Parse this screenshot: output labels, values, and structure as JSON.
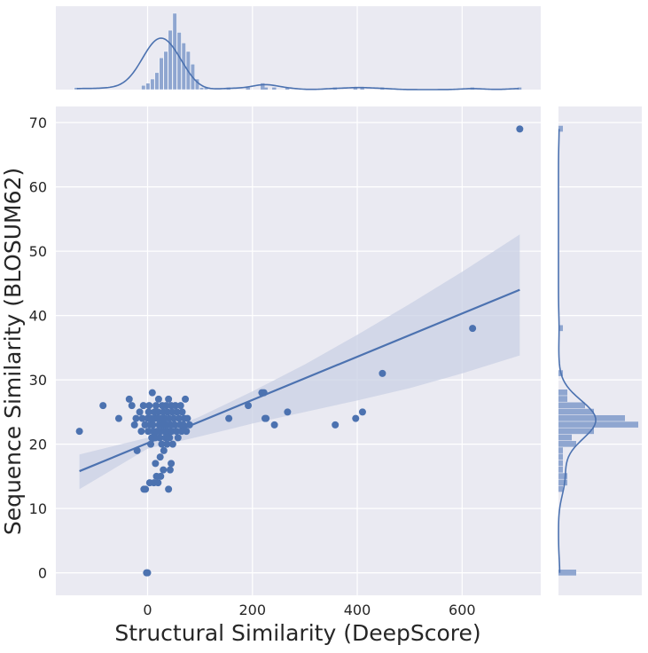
{
  "chart_data": {
    "type": "scatter",
    "xlabel": "Structural Similarity (DeepScore)",
    "ylabel": "Sequence Similarity (BLOSUM62)",
    "xlim": [
      -175,
      750
    ],
    "ylim": [
      -3.5,
      72.5
    ],
    "x_ticks": [
      0,
      200,
      400,
      600
    ],
    "y_ticks": [
      0,
      10,
      20,
      30,
      40,
      50,
      60,
      70
    ],
    "grid": true,
    "regression": {
      "x_start": -130,
      "y_start": 15.8,
      "x_end": 710,
      "y_end": 44.0
    },
    "confidence_band": {
      "x": [
        -130,
        0,
        100,
        200,
        300,
        400,
        500,
        600,
        710
      ],
      "upper": [
        18.4,
        21.0,
        24.3,
        28.2,
        32.4,
        37.0,
        41.8,
        46.8,
        52.6
      ],
      "lower": [
        13.0,
        19.3,
        21.2,
        23.2,
        25.0,
        26.8,
        28.7,
        31.0,
        33.8
      ]
    },
    "points": [
      {
        "x": -130,
        "y": 22
      },
      {
        "x": -85,
        "y": 26
      },
      {
        "x": -55,
        "y": 24
      },
      {
        "x": -35,
        "y": 27
      },
      {
        "x": -30,
        "y": 26
      },
      {
        "x": -25,
        "y": 23
      },
      {
        "x": -22,
        "y": 24
      },
      {
        "x": -20,
        "y": 19
      },
      {
        "x": -15,
        "y": 25
      },
      {
        "x": -12,
        "y": 22
      },
      {
        "x": -10,
        "y": 24
      },
      {
        "x": -8,
        "y": 26
      },
      {
        "x": -7,
        "y": 13
      },
      {
        "x": -5,
        "y": 23
      },
      {
        "x": -4,
        "y": 13
      },
      {
        "x": -2,
        "y": 0
      },
      {
        "x": 0,
        "y": 0
      },
      {
        "x": 0,
        "y": 24
      },
      {
        "x": 1,
        "y": 22
      },
      {
        "x": 2,
        "y": 25
      },
      {
        "x": 3,
        "y": 26
      },
      {
        "x": 4,
        "y": 14
      },
      {
        "x": 5,
        "y": 23
      },
      {
        "x": 6,
        "y": 20
      },
      {
        "x": 7,
        "y": 24
      },
      {
        "x": 8,
        "y": 21
      },
      {
        "x": 9,
        "y": 28
      },
      {
        "x": 10,
        "y": 23
      },
      {
        "x": 11,
        "y": 22
      },
      {
        "x": 12,
        "y": 14
      },
      {
        "x": 13,
        "y": 25
      },
      {
        "x": 14,
        "y": 24
      },
      {
        "x": 15,
        "y": 17
      },
      {
        "x": 15,
        "y": 21
      },
      {
        "x": 16,
        "y": 26
      },
      {
        "x": 17,
        "y": 15
      },
      {
        "x": 18,
        "y": 22
      },
      {
        "x": 19,
        "y": 24
      },
      {
        "x": 20,
        "y": 25
      },
      {
        "x": 20,
        "y": 14
      },
      {
        "x": 21,
        "y": 27
      },
      {
        "x": 22,
        "y": 23
      },
      {
        "x": 23,
        "y": 21
      },
      {
        "x": 24,
        "y": 18
      },
      {
        "x": 25,
        "y": 22
      },
      {
        "x": 25,
        "y": 15
      },
      {
        "x": 26,
        "y": 24
      },
      {
        "x": 27,
        "y": 20
      },
      {
        "x": 28,
        "y": 26
      },
      {
        "x": 29,
        "y": 23
      },
      {
        "x": 30,
        "y": 16
      },
      {
        "x": 30,
        "y": 25
      },
      {
        "x": 31,
        "y": 19
      },
      {
        "x": 32,
        "y": 22
      },
      {
        "x": 33,
        "y": 24
      },
      {
        "x": 34,
        "y": 21
      },
      {
        "x": 35,
        "y": 26
      },
      {
        "x": 36,
        "y": 23
      },
      {
        "x": 37,
        "y": 20
      },
      {
        "x": 38,
        "y": 25
      },
      {
        "x": 39,
        "y": 22
      },
      {
        "x": 40,
        "y": 27
      },
      {
        "x": 40,
        "y": 13
      },
      {
        "x": 41,
        "y": 24
      },
      {
        "x": 42,
        "y": 21
      },
      {
        "x": 43,
        "y": 16
      },
      {
        "x": 44,
        "y": 23
      },
      {
        "x": 45,
        "y": 26
      },
      {
        "x": 45,
        "y": 17
      },
      {
        "x": 46,
        "y": 22
      },
      {
        "x": 47,
        "y": 25
      },
      {
        "x": 48,
        "y": 20
      },
      {
        "x": 50,
        "y": 24
      },
      {
        "x": 52,
        "y": 23
      },
      {
        "x": 53,
        "y": 26
      },
      {
        "x": 55,
        "y": 22
      },
      {
        "x": 56,
        "y": 25
      },
      {
        "x": 58,
        "y": 21
      },
      {
        "x": 60,
        "y": 24
      },
      {
        "x": 62,
        "y": 23
      },
      {
        "x": 63,
        "y": 26
      },
      {
        "x": 65,
        "y": 22
      },
      {
        "x": 66,
        "y": 25
      },
      {
        "x": 68,
        "y": 23
      },
      {
        "x": 70,
        "y": 24
      },
      {
        "x": 72,
        "y": 27
      },
      {
        "x": 74,
        "y": 22
      },
      {
        "x": 76,
        "y": 24
      },
      {
        "x": 80,
        "y": 23
      },
      {
        "x": 155,
        "y": 24
      },
      {
        "x": 192,
        "y": 26
      },
      {
        "x": 218,
        "y": 28
      },
      {
        "x": 222,
        "y": 28
      },
      {
        "x": 224,
        "y": 24
      },
      {
        "x": 226,
        "y": 24
      },
      {
        "x": 242,
        "y": 23
      },
      {
        "x": 267,
        "y": 25
      },
      {
        "x": 358,
        "y": 23
      },
      {
        "x": 397,
        "y": 24
      },
      {
        "x": 410,
        "y": 25
      },
      {
        "x": 448,
        "y": 31
      },
      {
        "x": 620,
        "y": 38
      },
      {
        "x": 710,
        "y": 69
      }
    ],
    "marginal_x_hist": {
      "bin_start": -140,
      "bin_width": 8.55,
      "counts": [
        1,
        0,
        0,
        0,
        0,
        0,
        0,
        0,
        0,
        0,
        0,
        0,
        0,
        0,
        0,
        2,
        3,
        5,
        8,
        15,
        18,
        28,
        36,
        27,
        22,
        18,
        12,
        5,
        1,
        1,
        0,
        0,
        0,
        0,
        0,
        0,
        0,
        0,
        0,
        0,
        0,
        0,
        0,
        0,
        0,
        0,
        0,
        0,
        0,
        0,
        0,
        0,
        0,
        0,
        0,
        0,
        0,
        0,
        0,
        0,
        0,
        0,
        0,
        0,
        0,
        0,
        0,
        0,
        0,
        0,
        0,
        0,
        0,
        0,
        0,
        0,
        0,
        0,
        0,
        0,
        0,
        0,
        0,
        0,
        0,
        0,
        0,
        0,
        0,
        0,
        0,
        0,
        0,
        0,
        0,
        0,
        0,
        0,
        0,
        0,
        0
      ],
      "sparse_counts": [
        {
          "x": 155,
          "c": 1
        },
        {
          "x": 192,
          "c": 1
        },
        {
          "x": 220,
          "c": 3
        },
        {
          "x": 226,
          "c": 1
        },
        {
          "x": 242,
          "c": 1
        },
        {
          "x": 267,
          "c": 1
        },
        {
          "x": 358,
          "c": 1
        },
        {
          "x": 397,
          "c": 1
        },
        {
          "x": 410,
          "c": 1
        },
        {
          "x": 448,
          "c": 1
        },
        {
          "x": 620,
          "c": 1
        },
        {
          "x": 710,
          "c": 1
        }
      ]
    },
    "marginal_y_hist": {
      "bins": [
        {
          "y": 0,
          "c": 4
        },
        {
          "y": 13,
          "c": 1
        },
        {
          "y": 14,
          "c": 2
        },
        {
          "y": 15,
          "c": 2
        },
        {
          "y": 16,
          "c": 1
        },
        {
          "y": 17,
          "c": 1
        },
        {
          "y": 18,
          "c": 1
        },
        {
          "y": 19,
          "c": 1
        },
        {
          "y": 20,
          "c": 4
        },
        {
          "y": 21,
          "c": 3
        },
        {
          "y": 22,
          "c": 8
        },
        {
          "y": 23,
          "c": 18
        },
        {
          "y": 24,
          "c": 15
        },
        {
          "y": 25,
          "c": 8
        },
        {
          "y": 26,
          "c": 6
        },
        {
          "y": 27,
          "c": 2
        },
        {
          "y": 28,
          "c": 2
        },
        {
          "y": 31,
          "c": 1
        },
        {
          "y": 38,
          "c": 1
        },
        {
          "y": 69,
          "c": 1
        }
      ]
    },
    "colors": {
      "background": "#eaeaf2",
      "grid": "#ffffff",
      "point": "#4c72b0",
      "line": "#4c72b0",
      "band": "#c9d0e4",
      "hist": "#8fa6d0"
    }
  }
}
